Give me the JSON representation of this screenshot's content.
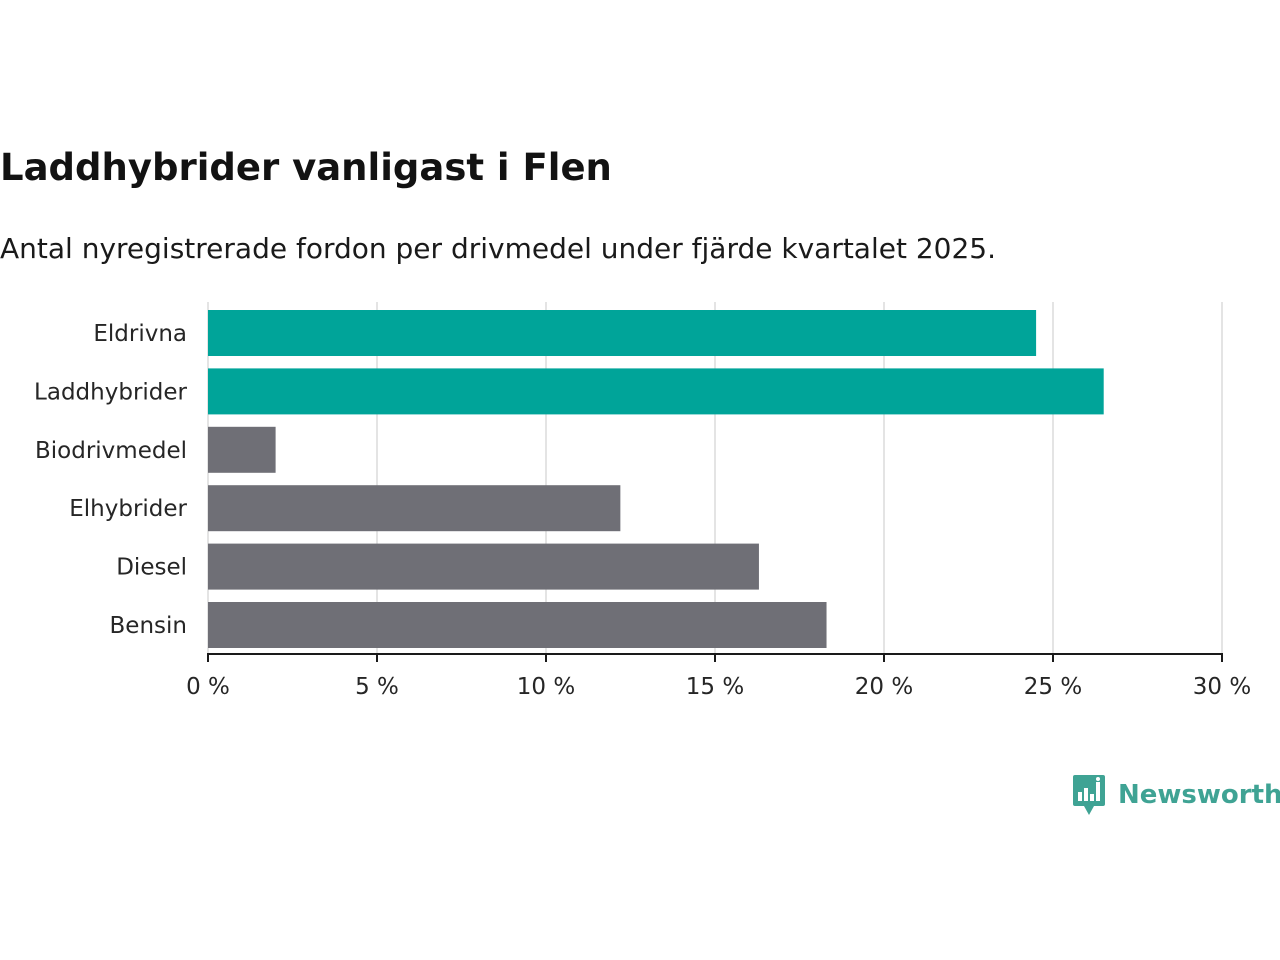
{
  "chart_data": {
    "type": "bar",
    "orientation": "horizontal",
    "title": "Laddhybrider vanligast i Flen",
    "subtitle": "Antal nyregistrerade fordon per drivmedel under fjärde kvartalet 2025.",
    "categories": [
      "Eldrivna",
      "Laddhybrider",
      "Biodrivmedel",
      "Elhybrider",
      "Diesel",
      "Bensin"
    ],
    "values": [
      24.5,
      26.5,
      2.0,
      12.2,
      16.3,
      18.3
    ],
    "bar_colors": [
      "#00a499",
      "#00a499",
      "#6f6f76",
      "#6f6f76",
      "#6f6f76",
      "#6f6f76"
    ],
    "xlim": [
      0,
      30
    ],
    "ticks": [
      0,
      5,
      10,
      15,
      20,
      25,
      30
    ],
    "tick_labels": [
      "0 %",
      "5 %",
      "10 %",
      "15 %",
      "20 %",
      "25 %",
      "30 %"
    ],
    "xlabel": "",
    "ylabel": "",
    "grid": true
  },
  "brand": {
    "name": "Newsworthy",
    "logo_icon": "newsworthy-logo-icon",
    "color": "#3fa394"
  }
}
